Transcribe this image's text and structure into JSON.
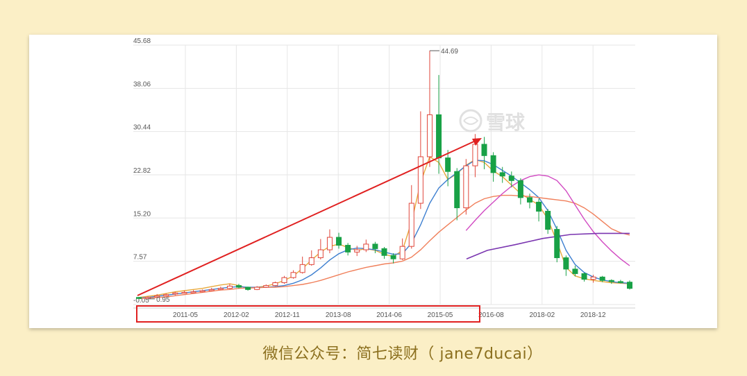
{
  "chart_data": {
    "type": "candlestick",
    "y_ticks": [
      "45.68",
      "38.06",
      "30.44",
      "22.82",
      "15.20",
      "7.57",
      "-0.05"
    ],
    "x_ticks": [
      "2011-05",
      "2012-02",
      "2012-11",
      "2013-08",
      "2014-06",
      "2015-05",
      "2016-08",
      "2018-02",
      "2018-12"
    ],
    "ylim": [
      -0.05,
      45.68
    ],
    "grid": true,
    "annotations": {
      "high_label": "44.69",
      "low_label": "0.95"
    },
    "watermark": "雪球",
    "ma_series": [
      {
        "color": "#e8a93c",
        "values": [
          1.2,
          1.4,
          1.6,
          1.9,
          2.2,
          2.4,
          2.6,
          2.8,
          3.1,
          3.4,
          3.6,
          3.3,
          2.8,
          3.0,
          3.2,
          3.6,
          4.2,
          5.0,
          6.3,
          7.8,
          9.2,
          10.2,
          10.6,
          10.0,
          9.5,
          9.8,
          9.5,
          8.8,
          8.4,
          9.5,
          14.5,
          21.5,
          26.0,
          25.0,
          22.0,
          23.0,
          24.5,
          25.5,
          25.0,
          23.5,
          22.5,
          21.0,
          19.5,
          18.5,
          17.5,
          15.0,
          11.0,
          6.5,
          5.0,
          4.5,
          4.2,
          4.0,
          3.8,
          3.7,
          3.6
        ]
      },
      {
        "color": "#3d7fd0",
        "values": [
          1.1,
          1.2,
          1.4,
          1.6,
          1.8,
          2.0,
          2.2,
          2.4,
          2.6,
          2.8,
          3.0,
          3.1,
          3.0,
          3.0,
          3.0,
          3.1,
          3.3,
          3.7,
          4.3,
          5.2,
          6.4,
          7.8,
          8.9,
          9.6,
          9.9,
          9.8,
          9.6,
          9.2,
          8.8,
          8.9,
          10.8,
          14.0,
          17.8,
          20.5,
          22.0,
          23.2,
          24.4,
          25.4,
          25.3,
          24.6,
          23.6,
          22.6,
          21.4,
          20.2,
          18.8,
          16.5,
          13.2,
          9.5,
          7.0,
          5.6,
          4.8,
          4.3,
          4.0,
          3.8,
          3.7
        ]
      },
      {
        "color": "#f07f5a",
        "values": [
          1.0,
          1.1,
          1.2,
          1.3,
          1.5,
          1.7,
          1.9,
          2.1,
          2.3,
          2.5,
          2.6,
          2.8,
          2.9,
          2.9,
          3.0,
          3.0,
          3.1,
          3.3,
          3.5,
          3.8,
          4.2,
          4.7,
          5.2,
          5.7,
          6.1,
          6.5,
          6.8,
          7.1,
          7.3,
          7.6,
          8.3,
          9.6,
          11.2,
          12.7,
          14.0,
          15.3,
          16.6,
          17.8,
          18.6,
          19.0,
          19.2,
          19.2,
          19.1,
          19.0,
          18.8,
          18.6,
          18.4,
          18.2,
          17.8,
          17.0,
          15.9,
          14.6,
          13.3,
          12.6,
          12.2
        ]
      },
      {
        "color": "#d149c2",
        "values": [
          null,
          null,
          null,
          null,
          null,
          null,
          null,
          null,
          null,
          null,
          null,
          null,
          null,
          null,
          null,
          null,
          null,
          null,
          null,
          null,
          null,
          null,
          null,
          null,
          null,
          null,
          null,
          null,
          null,
          null,
          null,
          null,
          null,
          null,
          null,
          null,
          13.0,
          14.8,
          16.5,
          18.0,
          19.5,
          20.8,
          21.8,
          22.5,
          22.8,
          22.6,
          21.8,
          20.0,
          17.5,
          15.0,
          12.8,
          11.0,
          9.4,
          8.0,
          6.8
        ]
      },
      {
        "color": "#7a35b0",
        "values": [
          null,
          null,
          null,
          null,
          null,
          null,
          null,
          null,
          null,
          null,
          null,
          null,
          null,
          null,
          null,
          null,
          null,
          null,
          null,
          null,
          null,
          null,
          null,
          null,
          null,
          null,
          null,
          null,
          null,
          null,
          null,
          null,
          null,
          null,
          null,
          null,
          null,
          null,
          null,
          null,
          null,
          null,
          null,
          null,
          null,
          null,
          null,
          null,
          null,
          null,
          null,
          null,
          null,
          null,
          null
        ]
      }
    ],
    "candles": [
      [
        1.2,
        1.1,
        1.3,
        0.95
      ],
      [
        1.1,
        1.2,
        1.4,
        1.0
      ],
      [
        1.3,
        1.5,
        1.8,
        1.2
      ],
      [
        1.5,
        1.7,
        1.9,
        1.4
      ],
      [
        1.8,
        2.0,
        2.2,
        1.6
      ],
      [
        2.0,
        2.1,
        2.4,
        1.9
      ],
      [
        2.1,
        2.2,
        2.5,
        2.0
      ],
      [
        2.2,
        2.4,
        2.6,
        2.1
      ],
      [
        2.4,
        2.6,
        2.9,
        2.3
      ],
      [
        2.6,
        2.8,
        3.1,
        2.5
      ],
      [
        2.8,
        3.2,
        3.6,
        2.7
      ],
      [
        3.3,
        3.0,
        3.6,
        2.8
      ],
      [
        3.0,
        2.6,
        3.1,
        2.4
      ],
      [
        2.6,
        3.0,
        3.2,
        2.5
      ],
      [
        3.0,
        3.3,
        3.5,
        2.9
      ],
      [
        3.3,
        3.8,
        4.0,
        3.2
      ],
      [
        3.8,
        4.7,
        5.0,
        3.6
      ],
      [
        4.7,
        5.6,
        6.0,
        4.5
      ],
      [
        5.6,
        7.0,
        8.4,
        5.4
      ],
      [
        7.0,
        8.2,
        9.5,
        6.8
      ],
      [
        8.2,
        9.6,
        11.5,
        7.9
      ],
      [
        9.6,
        11.8,
        13.2,
        9.0
      ],
      [
        11.8,
        10.4,
        12.6,
        9.8
      ],
      [
        10.4,
        9.2,
        10.8,
        8.6
      ],
      [
        9.2,
        9.6,
        10.3,
        8.5
      ],
      [
        9.6,
        10.6,
        11.4,
        9.2
      ],
      [
        10.6,
        9.8,
        11.0,
        9.0
      ],
      [
        9.8,
        8.6,
        10.1,
        8.0
      ],
      [
        8.6,
        8.0,
        9.0,
        7.2
      ],
      [
        8.0,
        10.2,
        11.6,
        7.8
      ],
      [
        10.2,
        17.8,
        21.0,
        9.8
      ],
      [
        17.8,
        26.0,
        34.0,
        16.8
      ],
      [
        26.0,
        33.4,
        44.69,
        24.2
      ],
      [
        33.4,
        25.8,
        40.4,
        23.0
      ],
      [
        25.8,
        23.4,
        27.2,
        20.8
      ],
      [
        23.4,
        17.0,
        24.0,
        14.8
      ],
      [
        17.0,
        24.4,
        25.6,
        15.8
      ],
      [
        24.4,
        28.2,
        30.0,
        22.4
      ],
      [
        28.2,
        26.2,
        29.5,
        23.8
      ],
      [
        26.2,
        23.2,
        26.8,
        21.6
      ],
      [
        23.2,
        22.6,
        24.2,
        21.4
      ],
      [
        22.6,
        21.8,
        23.4,
        20.6
      ],
      [
        21.8,
        18.8,
        22.2,
        17.6
      ],
      [
        18.8,
        18.0,
        19.5,
        16.9
      ],
      [
        18.0,
        16.4,
        18.6,
        14.6
      ],
      [
        16.4,
        13.2,
        16.8,
        12.4
      ],
      [
        13.2,
        8.2,
        13.8,
        7.4
      ],
      [
        8.2,
        6.2,
        8.6,
        5.0
      ],
      [
        6.2,
        5.4,
        6.8,
        4.9
      ],
      [
        5.4,
        4.4,
        5.6,
        4.0
      ],
      [
        4.4,
        4.8,
        5.2,
        3.8
      ],
      [
        4.8,
        4.2,
        5.0,
        3.9
      ],
      [
        4.2,
        4.0,
        4.4,
        3.6
      ],
      [
        4.0,
        3.9,
        4.3,
        3.7
      ],
      [
        3.9,
        2.8,
        4.2,
        2.6
      ]
    ]
  },
  "caption": "微信公众号：简七读财（ jane7ducai）"
}
